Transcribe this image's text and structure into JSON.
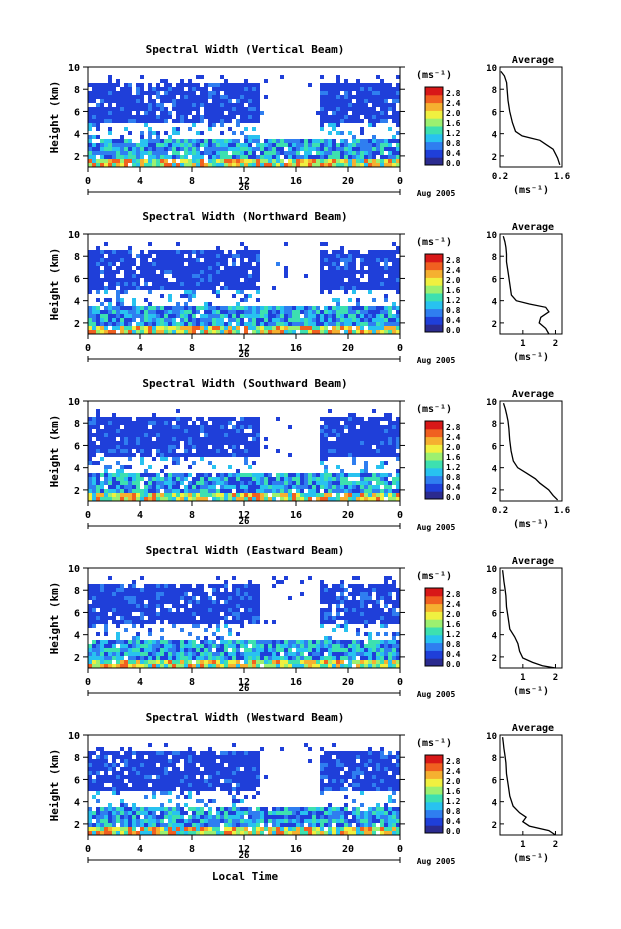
{
  "figure": {
    "xlabel": "Local Time",
    "date_label": "Aug 2005",
    "day_label": "26",
    "ylabel": "Height (km)",
    "colorbar_unit": "(ms⁻¹)",
    "colorbar_ticks": [
      "2.8",
      "2.4",
      "2.0",
      "1.6",
      "1.2",
      "0.8",
      "0.4",
      "0.0"
    ],
    "colormap": [
      "#2b2b8f",
      "#1f3fd9",
      "#2f7ef0",
      "#28c2f0",
      "#3de0b0",
      "#9cf070",
      "#f0f040",
      "#f5b030",
      "#f06020",
      "#d81818"
    ],
    "average_title": "Average",
    "average_xlabel": "(ms⁻¹)"
  },
  "chart_data": [
    {
      "type": "heatmap",
      "title": "Spectral Width (Vertical Beam)",
      "x_ticks": [
        "0",
        "4",
        "8",
        "12",
        "16",
        "20",
        "0"
      ],
      "xlim": [
        0,
        24
      ],
      "y_ticks": [
        "2",
        "4",
        "6",
        "8",
        "10"
      ],
      "ylim": [
        1,
        10
      ],
      "avg_x_ticks": [
        "0.2",
        "1.6"
      ],
      "avg_xlim": [
        0.2,
        1.6
      ],
      "avg_profile": [
        [
          1.55,
          1.2
        ],
        [
          1.5,
          1.8
        ],
        [
          1.45,
          2.2
        ],
        [
          1.4,
          2.6
        ],
        [
          1.25,
          3.0
        ],
        [
          1.1,
          3.4
        ],
        [
          0.9,
          3.6
        ],
        [
          0.7,
          3.8
        ],
        [
          0.55,
          4.2
        ],
        [
          0.48,
          5.0
        ],
        [
          0.42,
          6.0
        ],
        [
          0.38,
          7.0
        ],
        [
          0.36,
          8.0
        ],
        [
          0.35,
          8.6
        ],
        [
          0.3,
          9.2
        ],
        [
          0.22,
          9.6
        ]
      ]
    },
    {
      "type": "heatmap",
      "title": "Spectral Width (Northward Beam)",
      "x_ticks": [
        "0",
        "4",
        "8",
        "12",
        "16",
        "20",
        "0"
      ],
      "xlim": [
        0,
        24
      ],
      "y_ticks": [
        "2",
        "4",
        "6",
        "8",
        "10"
      ],
      "ylim": [
        1,
        10
      ],
      "avg_x_ticks": [
        "1",
        "2"
      ],
      "avg_xlim": [
        0.3,
        2.2
      ],
      "avg_profile": [
        [
          1.8,
          1.0
        ],
        [
          1.7,
          1.5
        ],
        [
          1.5,
          2.0
        ],
        [
          1.55,
          2.5
        ],
        [
          1.8,
          3.0
        ],
        [
          1.7,
          3.4
        ],
        [
          1.2,
          3.7
        ],
        [
          0.8,
          4.0
        ],
        [
          0.65,
          4.5
        ],
        [
          0.6,
          5.5
        ],
        [
          0.55,
          6.5
        ],
        [
          0.5,
          7.5
        ],
        [
          0.5,
          8.2
        ],
        [
          0.48,
          8.8
        ],
        [
          0.45,
          9.3
        ],
        [
          0.4,
          9.8
        ]
      ]
    },
    {
      "type": "heatmap",
      "title": "Spectral Width (Southward Beam)",
      "x_ticks": [
        "0",
        "4",
        "8",
        "12",
        "16",
        "20",
        "0"
      ],
      "xlim": [
        0,
        24
      ],
      "y_ticks": [
        "2",
        "4",
        "6",
        "8",
        "10"
      ],
      "ylim": [
        1,
        10
      ],
      "avg_x_ticks": [
        "0.2",
        "1.6"
      ],
      "avg_xlim": [
        0.2,
        1.6
      ],
      "avg_profile": [
        [
          1.5,
          1.1
        ],
        [
          1.4,
          1.5
        ],
        [
          1.3,
          2.0
        ],
        [
          1.1,
          2.6
        ],
        [
          1.0,
          3.0
        ],
        [
          0.8,
          3.5
        ],
        [
          0.6,
          4.0
        ],
        [
          0.5,
          4.6
        ],
        [
          0.45,
          5.5
        ],
        [
          0.42,
          6.5
        ],
        [
          0.4,
          7.5
        ],
        [
          0.38,
          8.2
        ],
        [
          0.35,
          8.8
        ],
        [
          0.32,
          9.3
        ],
        [
          0.28,
          9.8
        ]
      ]
    },
    {
      "type": "heatmap",
      "title": "Spectral Width (Eastward Beam)",
      "x_ticks": [
        "0",
        "4",
        "8",
        "12",
        "16",
        "20",
        "0"
      ],
      "xlim": [
        0,
        24
      ],
      "y_ticks": [
        "2",
        "4",
        "6",
        "8",
        "10"
      ],
      "ylim": [
        1,
        10
      ],
      "avg_x_ticks": [
        "1",
        "2"
      ],
      "avg_xlim": [
        0.3,
        2.2
      ],
      "avg_profile": [
        [
          2.0,
          1.0
        ],
        [
          1.6,
          1.2
        ],
        [
          1.3,
          1.5
        ],
        [
          1.0,
          1.9
        ],
        [
          0.9,
          2.5
        ],
        [
          0.85,
          3.2
        ],
        [
          0.75,
          3.8
        ],
        [
          0.6,
          4.5
        ],
        [
          0.55,
          5.5
        ],
        [
          0.5,
          6.5
        ],
        [
          0.48,
          7.5
        ],
        [
          0.45,
          8.2
        ],
        [
          0.42,
          8.8
        ],
        [
          0.4,
          9.3
        ],
        [
          0.38,
          9.8
        ]
      ]
    },
    {
      "type": "heatmap",
      "title": "Spectral Width (Westward Beam)",
      "x_ticks": [
        "0",
        "4",
        "8",
        "12",
        "16",
        "20",
        "0"
      ],
      "xlim": [
        0,
        24
      ],
      "y_ticks": [
        "2",
        "4",
        "6",
        "8",
        "10"
      ],
      "ylim": [
        1,
        10
      ],
      "avg_x_ticks": [
        "1",
        "2"
      ],
      "avg_xlim": [
        0.3,
        2.2
      ],
      "avg_profile": [
        [
          2.0,
          1.0
        ],
        [
          1.8,
          1.4
        ],
        [
          1.2,
          1.8
        ],
        [
          1.0,
          2.2
        ],
        [
          1.1,
          2.6
        ],
        [
          0.9,
          3.0
        ],
        [
          0.7,
          3.6
        ],
        [
          0.6,
          4.5
        ],
        [
          0.55,
          5.5
        ],
        [
          0.5,
          6.5
        ],
        [
          0.48,
          7.5
        ],
        [
          0.45,
          8.2
        ],
        [
          0.42,
          8.8
        ],
        [
          0.4,
          9.3
        ],
        [
          0.38,
          9.8
        ]
      ]
    }
  ]
}
